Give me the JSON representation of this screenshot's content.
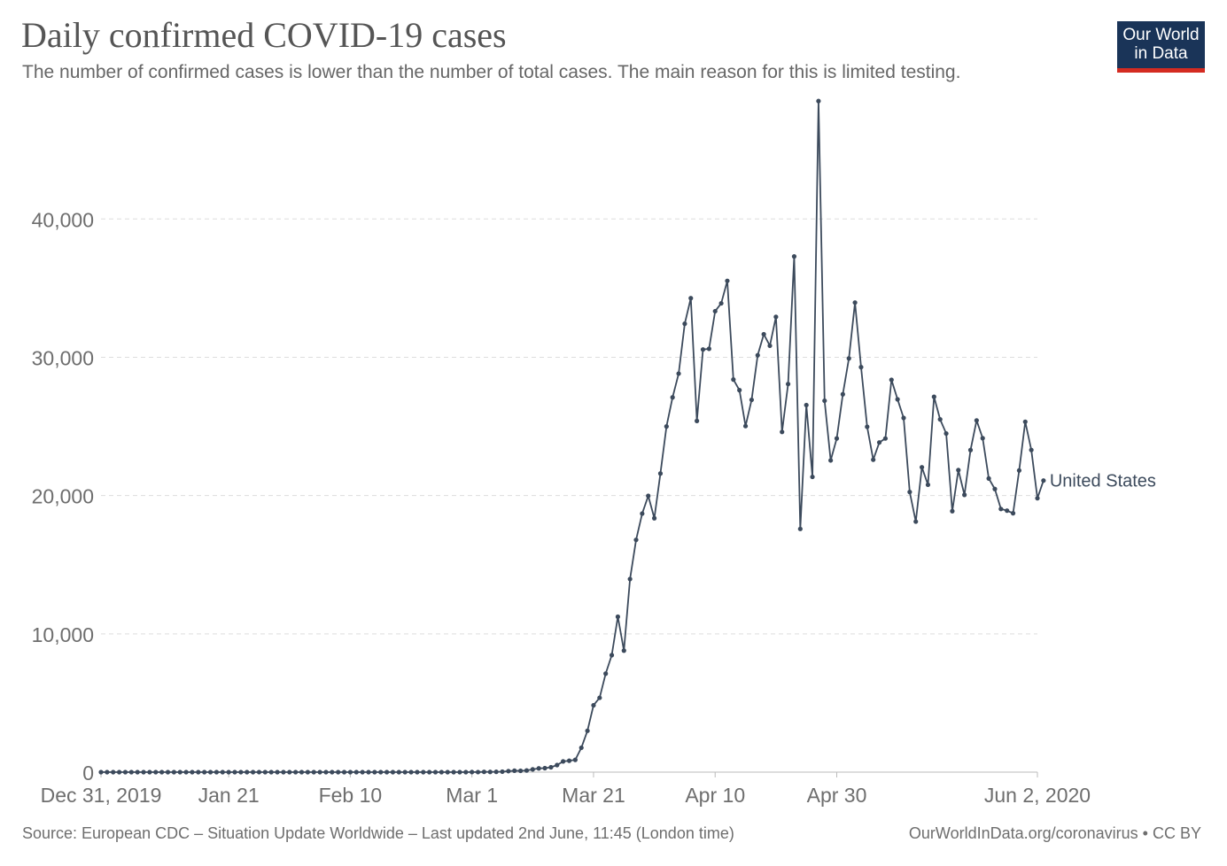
{
  "header": {
    "title": "Daily confirmed COVID-19 cases",
    "subtitle": "The number of confirmed cases is lower than the number of total cases. The main reason for this is limited testing."
  },
  "logo": {
    "line1": "Our World",
    "line2": "in Data",
    "bg_color": "#1a3458",
    "accent_color": "#d42b21"
  },
  "footer": {
    "source": "Source: European CDC – Situation Update Worldwide – Last updated 2nd June, 11:45 (London time)",
    "credit": "OurWorldInData.org/coronavirus • CC BY"
  },
  "chart_data": {
    "type": "line",
    "x_start": "2019-12-31",
    "x_end": "2020-06-02",
    "x_ticks": [
      {
        "label": "Dec 31, 2019",
        "day": 0
      },
      {
        "label": "Jan 21",
        "day": 21
      },
      {
        "label": "Feb 10",
        "day": 41
      },
      {
        "label": "Mar 1",
        "day": 61
      },
      {
        "label": "Mar 21",
        "day": 81
      },
      {
        "label": "Apr 10",
        "day": 101
      },
      {
        "label": "Apr 30",
        "day": 121
      },
      {
        "label": "Jun 2, 2020",
        "day": 154
      }
    ],
    "y_ticks": [
      {
        "label": "0",
        "value": 0
      },
      {
        "label": "10,000",
        "value": 10000
      },
      {
        "label": "20,000",
        "value": 20000
      },
      {
        "label": "30,000",
        "value": 30000
      },
      {
        "label": "40,000",
        "value": 40000
      }
    ],
    "ylim": [
      0,
      48600
    ],
    "grid": "horizontal dashed",
    "series": [
      {
        "name": "United States",
        "color": "#3c4a5c",
        "values": [
          0,
          0,
          0,
          0,
          0,
          0,
          0,
          0,
          0,
          0,
          0,
          0,
          0,
          0,
          0,
          0,
          0,
          0,
          0,
          0,
          0,
          1,
          0,
          0,
          1,
          0,
          2,
          0,
          0,
          0,
          0,
          1,
          0,
          0,
          0,
          0,
          0,
          0,
          0,
          0,
          1,
          0,
          0,
          0,
          0,
          0,
          0,
          1,
          0,
          0,
          0,
          0,
          0,
          0,
          0,
          0,
          0,
          0,
          0,
          0,
          0,
          6,
          3,
          20,
          14,
          22,
          34,
          74,
          105,
          95,
          121,
          200,
          271,
          287,
          351,
          511,
          777,
          823,
          887,
          1766,
          2988,
          4835,
          5374,
          7123,
          8459,
          11236,
          8789,
          13963,
          16797,
          18695,
          19979,
          18360,
          21595,
          24998,
          27103,
          28819,
          32425,
          34272,
          25398,
          30561,
          30613,
          33331,
          33901,
          35527,
          28391,
          27620,
          25023,
          26922,
          30148,
          31667,
          30833,
          32922,
          24601,
          28065,
          37289,
          17588,
          26543,
          21352,
          48529,
          26857,
          22541,
          24132,
          27326,
          29917,
          33955,
          29288,
          24972,
          22593,
          23841,
          24128,
          28369,
          26957,
          25612,
          20258,
          18117,
          22048,
          20782,
          27143,
          25508,
          24487,
          18873,
          21841,
          20049,
          23290,
          25434,
          24147,
          21236,
          20475,
          19031,
          18910,
          18721,
          21817,
          25337,
          23297,
          19807,
          21086
        ]
      }
    ]
  }
}
